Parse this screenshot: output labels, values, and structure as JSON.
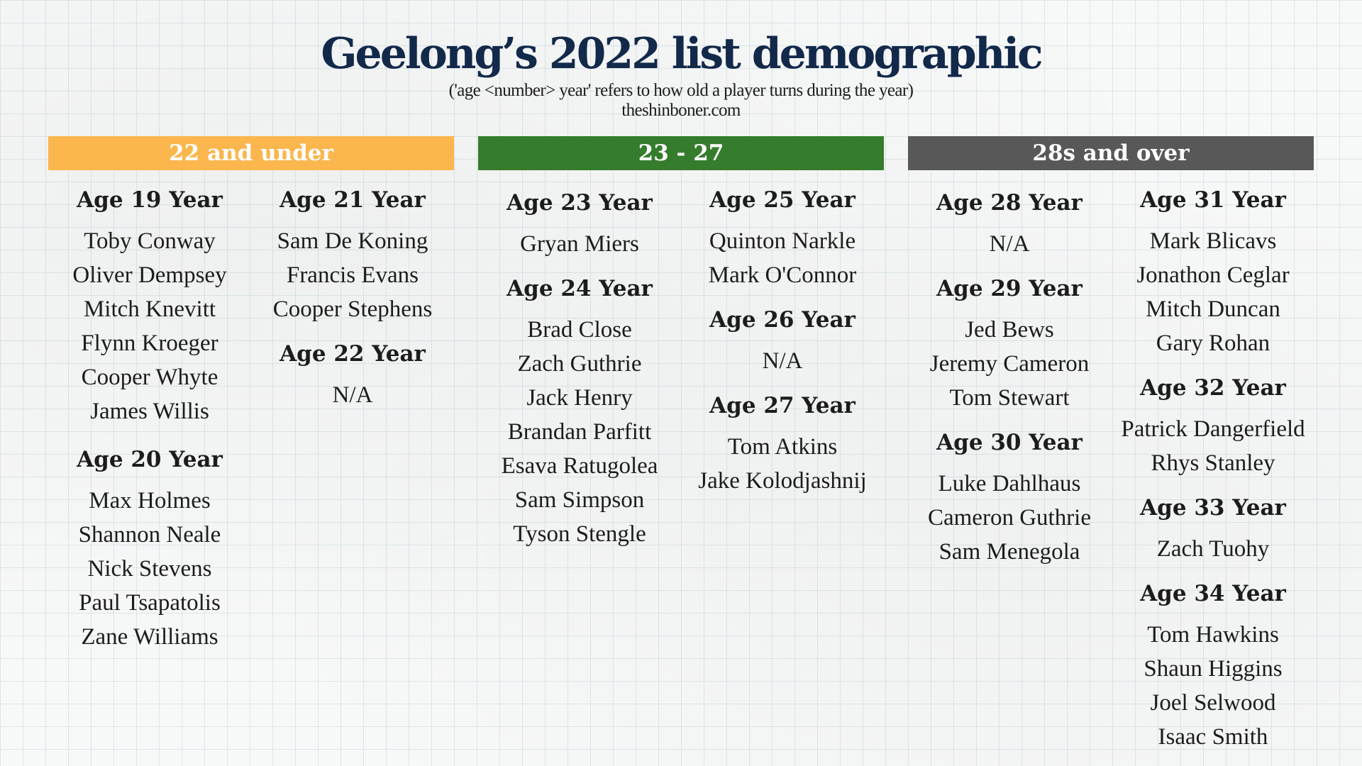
{
  "title": "Geelong’s 2022 list demographic",
  "subtitle": "('age <number> year' refers to how old a player turns during the year)",
  "source": "theshinboner.com",
  "colors": {
    "band_22_under": "#fbb64d",
    "band_23_27": "#357c2c",
    "band_28_over": "#585858",
    "title": "#12294a"
  },
  "bands": {
    "under22": "22 and under",
    "mid": "23 - 27",
    "over28": "28s and over"
  },
  "groups": {
    "age19": {
      "heading": "Age 19 Year",
      "players": [
        "Toby Conway",
        "Oliver Dempsey",
        "Mitch Knevitt",
        "Flynn Kroeger",
        "Cooper Whyte",
        "James Willis"
      ]
    },
    "age20": {
      "heading": "Age 20 Year",
      "players": [
        "Max Holmes",
        "Shannon Neale",
        "Nick Stevens",
        "Paul Tsapatolis",
        "Zane Williams"
      ]
    },
    "age21": {
      "heading": "Age 21 Year",
      "players": [
        "Sam De Koning",
        "Francis Evans",
        "Cooper Stephens"
      ]
    },
    "age22": {
      "heading": "Age 22 Year",
      "players": [
        "N/A"
      ]
    },
    "age23": {
      "heading": "Age 23 Year",
      "players": [
        "Gryan Miers"
      ]
    },
    "age24": {
      "heading": "Age 24 Year",
      "players": [
        "Brad Close",
        "Zach Guthrie",
        "Jack Henry",
        "Brandan Parfitt",
        "Esava Ratugolea",
        "Sam Simpson",
        "Tyson Stengle"
      ]
    },
    "age25": {
      "heading": "Age 25 Year",
      "players": [
        "Quinton Narkle",
        "Mark O'Connor"
      ]
    },
    "age26": {
      "heading": "Age 26 Year",
      "players": [
        "N/A"
      ]
    },
    "age27": {
      "heading": "Age 27 Year",
      "players": [
        "Tom Atkins",
        "Jake Kolodjashnij"
      ]
    },
    "age28": {
      "heading": "Age 28 Year",
      "players": [
        "N/A"
      ]
    },
    "age29": {
      "heading": "Age 29 Year",
      "players": [
        "Jed Bews",
        "Jeremy Cameron",
        "Tom Stewart"
      ]
    },
    "age30": {
      "heading": "Age 30 Year",
      "players": [
        "Luke Dahlhaus",
        "Cameron Guthrie",
        "Sam Menegola"
      ]
    },
    "age31": {
      "heading": "Age 31 Year",
      "players": [
        "Mark Blicavs",
        "Jonathon Ceglar",
        "Mitch Duncan",
        "Gary Rohan"
      ]
    },
    "age32": {
      "heading": "Age 32 Year",
      "players": [
        "Patrick Dangerfield",
        "Rhys Stanley"
      ]
    },
    "age33": {
      "heading": "Age 33 Year",
      "players": [
        "Zach Tuohy"
      ]
    },
    "age34": {
      "heading": "Age 34 Year",
      "players": [
        "Tom Hawkins",
        "Shaun Higgins",
        "Joel Selwood",
        "Isaac Smith"
      ]
    }
  }
}
